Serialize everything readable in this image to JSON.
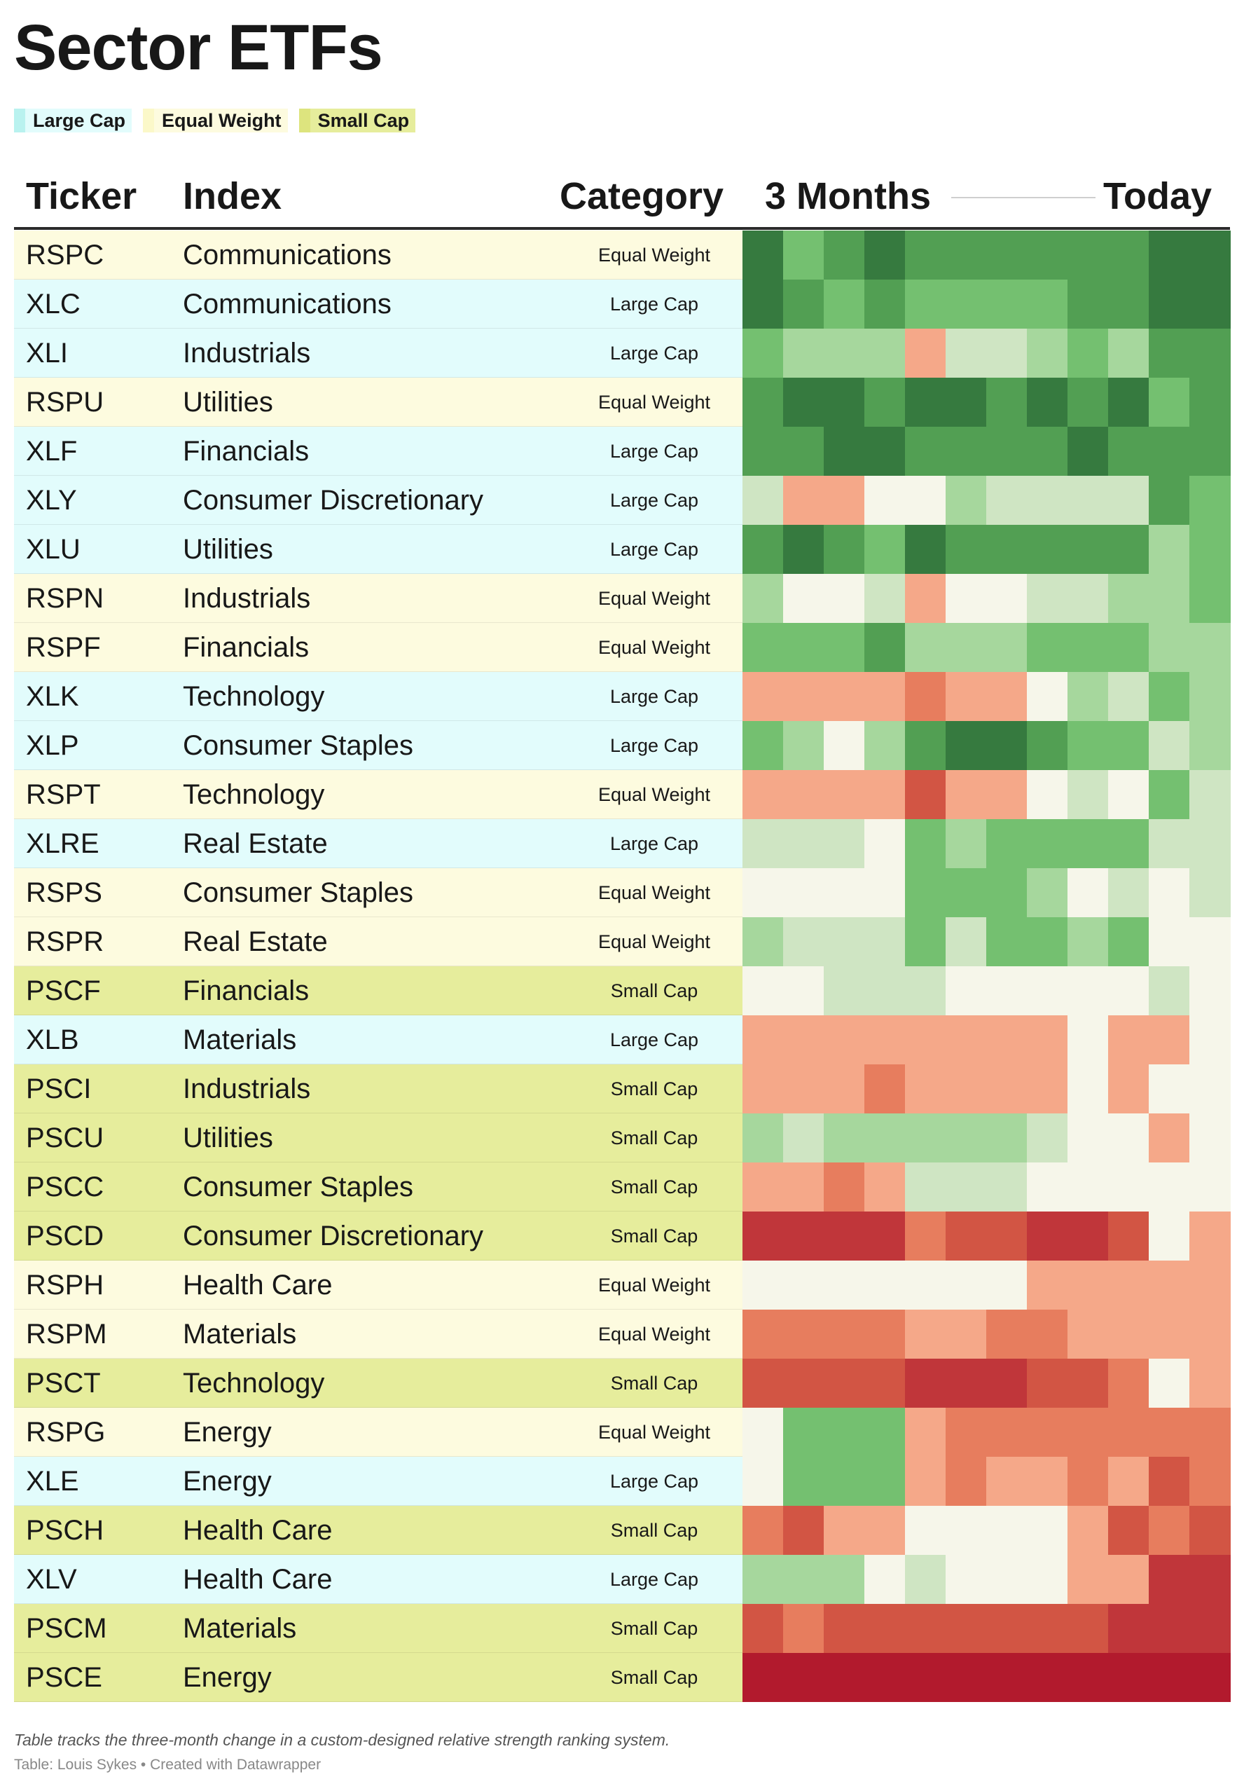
{
  "title": "Sector ETFs",
  "legend": [
    {
      "label": "Large Cap",
      "color": "#b9f2ef"
    },
    {
      "label": "Equal Weight",
      "color": "#fbf8c9"
    },
    {
      "label": "Small Cap",
      "color": "#dde47e"
    }
  ],
  "header": {
    "ticker": "Ticker",
    "index": "Index",
    "category": "Category",
    "timeline_start": "3 Months",
    "timeline_end": "Today"
  },
  "category_colors": {
    "Large Cap": "#e2fcfc",
    "Equal Weight": "#fdfbdf",
    "Small Cap": "#e6ed9c"
  },
  "palette": {
    "-5": "#b21a2d",
    "-4": "#c0363a",
    "-3": "#d25544",
    "-2": "#e77d5e",
    "-1": "#f5a889",
    "0": "#f6f6ea",
    "1": "#cfe5c3",
    "2": "#a6d79d",
    "3": "#74c070",
    "4": "#529f53",
    "5": "#367a3f"
  },
  "chart_data": {
    "type": "heatmap",
    "title": "Sector ETFs",
    "columns": [
      "Ticker",
      "Index",
      "Category",
      "3 Months",
      "Today"
    ],
    "rows": [
      {
        "ticker": "RSPC",
        "index": "Communications",
        "category": "Equal Weight",
        "values": [
          5,
          3,
          4,
          5,
          4,
          4,
          4,
          4,
          4,
          4,
          5,
          5
        ]
      },
      {
        "ticker": "XLC",
        "index": "Communications",
        "category": "Large Cap",
        "values": [
          5,
          4,
          3,
          4,
          3,
          3,
          3,
          3,
          4,
          4,
          5,
          5
        ]
      },
      {
        "ticker": "XLI",
        "index": "Industrials",
        "category": "Large Cap",
        "values": [
          3,
          2,
          2,
          2,
          -1,
          1,
          1,
          2,
          3,
          2,
          4,
          4
        ]
      },
      {
        "ticker": "RSPU",
        "index": "Utilities",
        "category": "Equal Weight",
        "values": [
          4,
          5,
          5,
          4,
          5,
          5,
          4,
          5,
          4,
          5,
          3,
          4
        ]
      },
      {
        "ticker": "XLF",
        "index": "Financials",
        "category": "Large Cap",
        "values": [
          4,
          4,
          5,
          5,
          4,
          4,
          4,
          4,
          5,
          4,
          4,
          4
        ]
      },
      {
        "ticker": "XLY",
        "index": "Consumer Discretionary",
        "category": "Large Cap",
        "values": [
          1,
          -1,
          -1,
          0,
          0,
          2,
          1,
          1,
          1,
          1,
          4,
          3
        ]
      },
      {
        "ticker": "XLU",
        "index": "Utilities",
        "category": "Large Cap",
        "values": [
          4,
          5,
          4,
          3,
          5,
          4,
          4,
          4,
          4,
          4,
          2,
          3
        ]
      },
      {
        "ticker": "RSPN",
        "index": "Industrials",
        "category": "Equal Weight",
        "values": [
          2,
          0,
          0,
          1,
          -1,
          0,
          0,
          1,
          1,
          2,
          2,
          3
        ]
      },
      {
        "ticker": "RSPF",
        "index": "Financials",
        "category": "Equal Weight",
        "values": [
          3,
          3,
          3,
          4,
          2,
          2,
          2,
          3,
          3,
          3,
          2,
          2
        ]
      },
      {
        "ticker": "XLK",
        "index": "Technology",
        "category": "Large Cap",
        "values": [
          -1,
          -1,
          -1,
          -1,
          -2,
          -1,
          -1,
          0,
          2,
          1,
          3,
          2
        ]
      },
      {
        "ticker": "XLP",
        "index": "Consumer Staples",
        "category": "Large Cap",
        "values": [
          3,
          2,
          0,
          2,
          4,
          5,
          5,
          4,
          3,
          3,
          1,
          2
        ]
      },
      {
        "ticker": "RSPT",
        "index": "Technology",
        "category": "Equal Weight",
        "values": [
          -1,
          -1,
          -1,
          -1,
          -3,
          -1,
          -1,
          0,
          1,
          0,
          3,
          1
        ]
      },
      {
        "ticker": "XLRE",
        "index": "Real Estate",
        "category": "Large Cap",
        "values": [
          1,
          1,
          1,
          0,
          3,
          2,
          3,
          3,
          3,
          3,
          1,
          1
        ]
      },
      {
        "ticker": "RSPS",
        "index": "Consumer Staples",
        "category": "Equal Weight",
        "values": [
          0,
          0,
          0,
          0,
          3,
          3,
          3,
          2,
          0,
          1,
          0,
          1
        ]
      },
      {
        "ticker": "RSPR",
        "index": "Real Estate",
        "category": "Equal Weight",
        "values": [
          2,
          1,
          1,
          1,
          3,
          1,
          3,
          3,
          2,
          3,
          0,
          0
        ]
      },
      {
        "ticker": "PSCF",
        "index": "Financials",
        "category": "Small Cap",
        "values": [
          0,
          0,
          1,
          1,
          1,
          0,
          0,
          0,
          0,
          0,
          1,
          0
        ]
      },
      {
        "ticker": "XLB",
        "index": "Materials",
        "category": "Large Cap",
        "values": [
          -1,
          -1,
          -1,
          -1,
          -1,
          -1,
          -1,
          -1,
          0,
          -1,
          -1,
          0
        ]
      },
      {
        "ticker": "PSCI",
        "index": "Industrials",
        "category": "Small Cap",
        "values": [
          -1,
          -1,
          -1,
          -2,
          -1,
          -1,
          -1,
          -1,
          0,
          -1,
          0,
          0
        ]
      },
      {
        "ticker": "PSCU",
        "index": "Utilities",
        "category": "Small Cap",
        "values": [
          2,
          1,
          2,
          2,
          2,
          2,
          2,
          1,
          0,
          0,
          -1,
          0
        ]
      },
      {
        "ticker": "PSCC",
        "index": "Consumer Staples",
        "category": "Small Cap",
        "values": [
          -1,
          -1,
          -2,
          -1,
          1,
          1,
          1,
          0,
          0,
          0,
          0,
          0
        ]
      },
      {
        "ticker": "PSCD",
        "index": "Consumer Discretionary",
        "category": "Small Cap",
        "values": [
          -4,
          -4,
          -4,
          -4,
          -2,
          -3,
          -3,
          -4,
          -4,
          -3,
          0,
          -1
        ]
      },
      {
        "ticker": "RSPH",
        "index": "Health Care",
        "category": "Equal Weight",
        "values": [
          0,
          0,
          0,
          0,
          0,
          0,
          0,
          -1,
          -1,
          -1,
          -1,
          -1
        ]
      },
      {
        "ticker": "RSPM",
        "index": "Materials",
        "category": "Equal Weight",
        "values": [
          -2,
          -2,
          -2,
          -2,
          -1,
          -1,
          -2,
          -2,
          -1,
          -1,
          -1,
          -1
        ]
      },
      {
        "ticker": "PSCT",
        "index": "Technology",
        "category": "Small Cap",
        "values": [
          -3,
          -3,
          -3,
          -3,
          -4,
          -4,
          -4,
          -3,
          -3,
          -2,
          0,
          -1
        ]
      },
      {
        "ticker": "RSPG",
        "index": "Energy",
        "category": "Equal Weight",
        "values": [
          0,
          3,
          3,
          3,
          -1,
          -2,
          -2,
          -2,
          -2,
          -2,
          -2,
          -2
        ]
      },
      {
        "ticker": "XLE",
        "index": "Energy",
        "category": "Large Cap",
        "values": [
          0,
          3,
          3,
          3,
          -1,
          -2,
          -1,
          -1,
          -2,
          -1,
          -3,
          -2
        ]
      },
      {
        "ticker": "PSCH",
        "index": "Health Care",
        "category": "Small Cap",
        "values": [
          -2,
          -3,
          -1,
          -1,
          0,
          0,
          0,
          0,
          -1,
          -3,
          -2,
          -3
        ]
      },
      {
        "ticker": "XLV",
        "index": "Health Care",
        "category": "Large Cap",
        "values": [
          2,
          2,
          2,
          0,
          1,
          0,
          0,
          0,
          -1,
          -1,
          -4,
          -4
        ]
      },
      {
        "ticker": "PSCM",
        "index": "Materials",
        "category": "Small Cap",
        "values": [
          -3,
          -2,
          -3,
          -3,
          -3,
          -3,
          -3,
          -3,
          -3,
          -4,
          -4,
          -4
        ]
      },
      {
        "ticker": "PSCE",
        "index": "Energy",
        "category": "Small Cap",
        "values": [
          -5,
          -5,
          -5,
          -5,
          -5,
          -5,
          -5,
          -5,
          -5,
          -5,
          -5,
          -5
        ]
      }
    ]
  },
  "footer": {
    "note": "Table tracks the three-month change in a custom-designed relative strength ranking system.",
    "credit": "Table: Louis Sykes • Created with Datawrapper"
  }
}
